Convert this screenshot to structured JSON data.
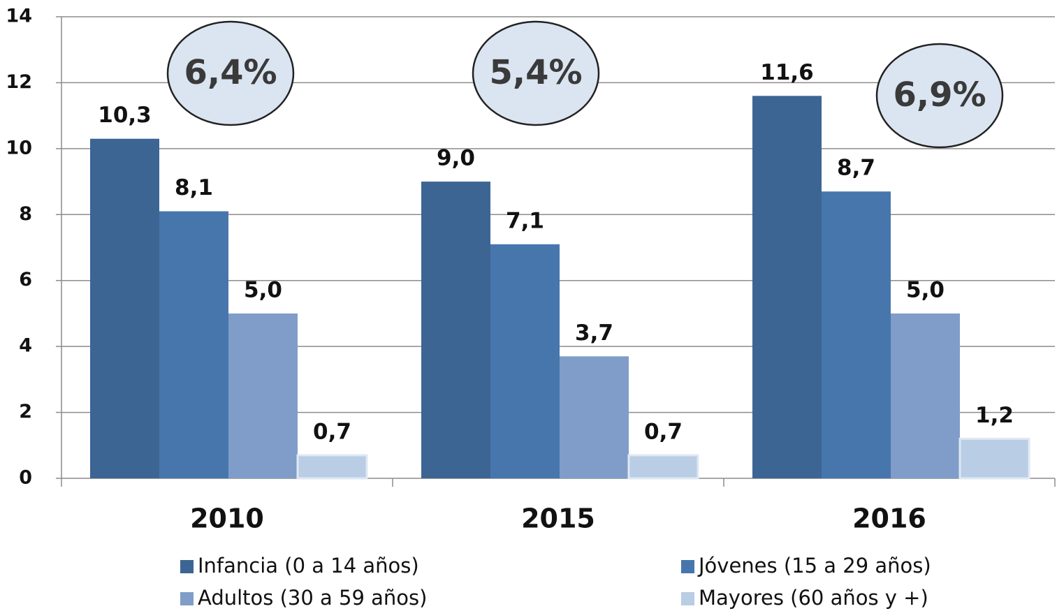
{
  "chart_data": {
    "type": "bar",
    "categories": [
      "2010",
      "2015",
      "2016"
    ],
    "series": [
      {
        "name": "Infancia (0 a 14 años)",
        "color": "#3d6594",
        "values": [
          10.3,
          9.0,
          11.6
        ],
        "value_labels": [
          "10,3",
          "9,0",
          "11,6"
        ]
      },
      {
        "name": "Jóvenes (15 a 29 años)",
        "color": "#4776ad",
        "values": [
          8.1,
          7.1,
          8.7
        ],
        "value_labels": [
          "8,1",
          "7,1",
          "8,7"
        ]
      },
      {
        "name": "Adultos (30 a 59 años)",
        "color": "#7f9dc8",
        "values": [
          5.0,
          3.7,
          5.0
        ],
        "value_labels": [
          "5,0",
          "3,7",
          "5,0"
        ]
      },
      {
        "name": "Mayores (60 años y +)",
        "color": "#b9cde5",
        "values": [
          0.7,
          0.7,
          1.2
        ],
        "value_labels": [
          "0,7",
          "0,7",
          "1,2"
        ]
      }
    ],
    "annotations": [
      "6,4%",
      "5,4%",
      "6,9%"
    ],
    "ylim": [
      0,
      14
    ],
    "yticks": [
      0,
      2,
      4,
      6,
      8,
      10,
      12,
      14
    ],
    "grid": true,
    "legend": "bottom"
  }
}
